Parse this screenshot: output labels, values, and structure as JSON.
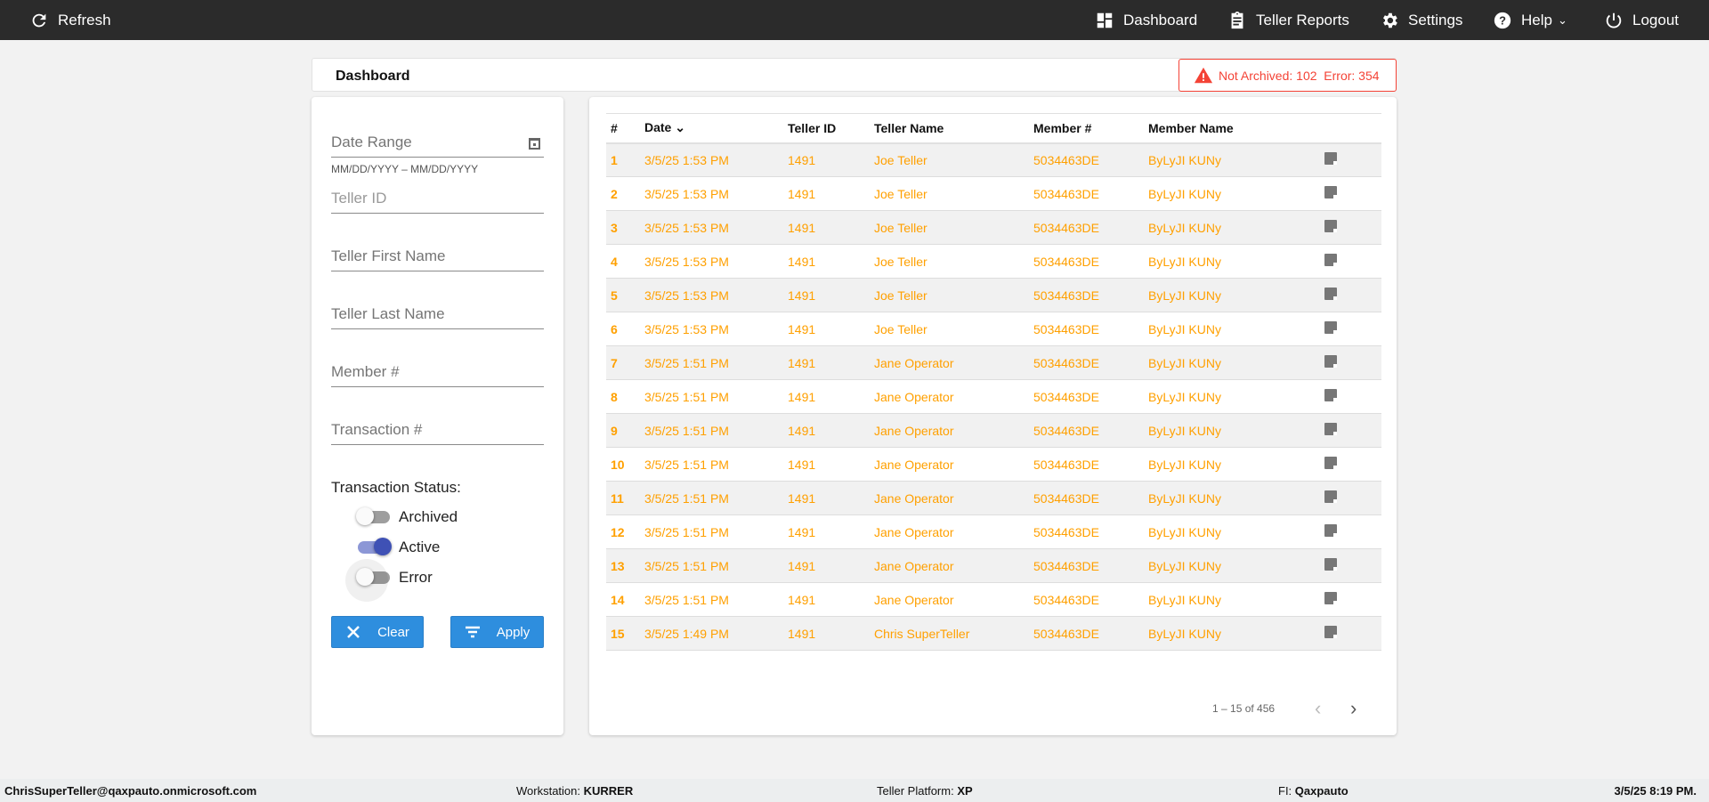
{
  "navbar": {
    "refresh": "Refresh",
    "items": [
      {
        "label": "Dashboard",
        "icon": "dashboard-icon"
      },
      {
        "label": "Teller Reports",
        "icon": "clipboard-icon"
      },
      {
        "label": "Settings",
        "icon": "gear-icon"
      },
      {
        "label": "Help",
        "icon": "help-icon"
      },
      {
        "label": "Logout",
        "icon": "power-icon"
      }
    ]
  },
  "header": {
    "title": "Dashboard",
    "alert": "Not Archived: 102  Error: 354"
  },
  "filters": {
    "date_range": "Date Range",
    "date_hint": "MM/DD/YYYY – MM/DD/YYYY",
    "teller_id": "Teller ID",
    "first_name": "Teller First Name",
    "last_name": "Teller Last Name",
    "member": "Member #",
    "transaction": "Transaction #",
    "status_label": "Transaction Status:",
    "toggles": [
      {
        "label": "Archived",
        "on": false
      },
      {
        "label": "Active",
        "on": true
      },
      {
        "label": "Error",
        "on": false
      }
    ],
    "clear": "Clear",
    "apply": "Apply"
  },
  "table": {
    "columns": [
      "#",
      "Date",
      "Teller ID",
      "Teller Name",
      "Member #",
      "Member Name"
    ],
    "rows": [
      [
        "1",
        "3/5/25 1:53 PM",
        "1491",
        "Joe Teller",
        "5034463DE",
        "ByLyJI KUNy"
      ],
      [
        "2",
        "3/5/25 1:53 PM",
        "1491",
        "Joe Teller",
        "5034463DE",
        "ByLyJI KUNy"
      ],
      [
        "3",
        "3/5/25 1:53 PM",
        "1491",
        "Joe Teller",
        "5034463DE",
        "ByLyJI KUNy"
      ],
      [
        "4",
        "3/5/25 1:53 PM",
        "1491",
        "Joe Teller",
        "5034463DE",
        "ByLyJI KUNy"
      ],
      [
        "5",
        "3/5/25 1:53 PM",
        "1491",
        "Joe Teller",
        "5034463DE",
        "ByLyJI KUNy"
      ],
      [
        "6",
        "3/5/25 1:53 PM",
        "1491",
        "Joe Teller",
        "5034463DE",
        "ByLyJI KUNy"
      ],
      [
        "7",
        "3/5/25 1:51 PM",
        "1491",
        "Jane Operator",
        "5034463DE",
        "ByLyJI KUNy"
      ],
      [
        "8",
        "3/5/25 1:51 PM",
        "1491",
        "Jane Operator",
        "5034463DE",
        "ByLyJI KUNy"
      ],
      [
        "9",
        "3/5/25 1:51 PM",
        "1491",
        "Jane Operator",
        "5034463DE",
        "ByLyJI KUNy"
      ],
      [
        "10",
        "3/5/25 1:51 PM",
        "1491",
        "Jane Operator",
        "5034463DE",
        "ByLyJI KUNy"
      ],
      [
        "11",
        "3/5/25 1:51 PM",
        "1491",
        "Jane Operator",
        "5034463DE",
        "ByLyJI KUNy"
      ],
      [
        "12",
        "3/5/25 1:51 PM",
        "1491",
        "Jane Operator",
        "5034463DE",
        "ByLyJI KUNy"
      ],
      [
        "13",
        "3/5/25 1:51 PM",
        "1491",
        "Jane Operator",
        "5034463DE",
        "ByLyJI KUNy"
      ],
      [
        "14",
        "3/5/25 1:51 PM",
        "1491",
        "Jane Operator",
        "5034463DE",
        "ByLyJI KUNy"
      ],
      [
        "15",
        "3/5/25 1:49 PM",
        "1491",
        "Chris SuperTeller",
        "5034463DE",
        "ByLyJI KUNy"
      ]
    ],
    "pagination": "1 – 15 of 456"
  },
  "footer": {
    "user": "ChrisSuperTeller@qaxpauto.onmicrosoft.com",
    "workstation_label": "Workstation: ",
    "workstation": "KURRER",
    "platform_label": "Teller Platform: ",
    "platform": "XP",
    "fi_label": "FI: ",
    "fi": "Qaxpauto",
    "datetime": "3/5/25 8:19 PM."
  },
  "colors": {
    "navbar": "#2b2b2b",
    "accent": "#2e8ede",
    "row_text": "#ffa000",
    "alert": "#f44336",
    "toggle_on": "#3f51b5"
  }
}
